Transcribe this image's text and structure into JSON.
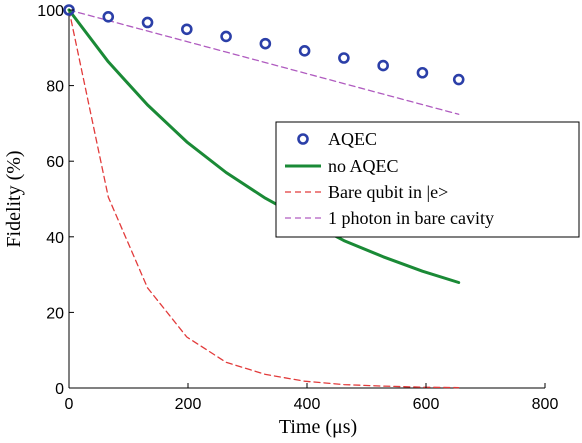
{
  "chart_data": {
    "type": "line",
    "xlabel": "Time (μs)",
    "ylabel": "Fidelity  (%)",
    "xlim": [
      0,
      800
    ],
    "ylim": [
      0,
      100
    ],
    "xticks": [
      "0",
      "200",
      "400",
      "600",
      "800"
    ],
    "yticks": [
      "0",
      "20",
      "40",
      "60",
      "80",
      "100"
    ],
    "grid": false,
    "legend_position": "center-right",
    "series": [
      {
        "name": "AQEC",
        "style": "markers",
        "color": "#2b3fa8",
        "x": [
          0,
          66,
          132,
          198,
          264,
          330,
          396,
          462,
          528,
          594,
          655
        ],
        "y": [
          100,
          98.2,
          96.7,
          94.9,
          93.0,
          91.1,
          89.2,
          87.3,
          85.3,
          83.4,
          81.6
        ]
      },
      {
        "name": "no AQEC",
        "style": "solid",
        "color": "#1a8a36",
        "x": [
          0,
          66,
          132,
          198,
          264,
          330,
          396,
          462,
          528,
          594,
          655
        ],
        "y": [
          100,
          86.3,
          74.9,
          65.1,
          57.0,
          50.2,
          44.5,
          39.0,
          34.7,
          30.9,
          27.9
        ]
      },
      {
        "name": "Bare qubit in |e>",
        "style": "dashed",
        "color": "#e23b3b",
        "x": [
          0,
          66,
          132,
          198,
          264,
          330,
          396,
          462,
          528,
          594,
          655
        ],
        "y": [
          100,
          50.5,
          26.5,
          13.5,
          6.8,
          3.6,
          1.8,
          0.9,
          0.5,
          0.2,
          0.1
        ]
      },
      {
        "name": "1 photon in bare cavity",
        "style": "dashed",
        "color": "#b05cc0",
        "x": [
          0,
          655
        ],
        "y": [
          100,
          72.4
        ]
      }
    ]
  }
}
